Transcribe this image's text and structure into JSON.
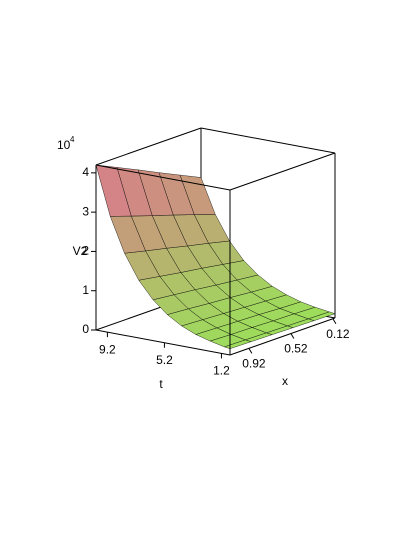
{
  "chart_data": {
    "type": "surface",
    "zlabel": "V2",
    "tlabel": "t",
    "xlabel": "x",
    "z_multiplier": {
      "base": "10",
      "exponent": "4"
    },
    "tlim": [
      0.6,
      10
    ],
    "xlim": [
      0.1,
      1.1
    ],
    "zlim": [
      0,
      4.2
    ],
    "zticks": [
      0,
      1,
      2,
      3,
      4
    ],
    "tticks": [
      9.2,
      5.2,
      1.2
    ],
    "xticks": [
      0.92,
      0.52,
      0.12
    ],
    "colormap": [
      "#9be05a",
      "#e0708f"
    ],
    "mesh_color": "#000000",
    "t": [
      10,
      9,
      8,
      7,
      6,
      5,
      4,
      3,
      2,
      1,
      0.6
    ],
    "x": [
      1.1,
      0.9,
      0.7,
      0.5,
      0.3,
      0.1
    ],
    "values": [
      [
        4.2,
        2.96,
        2.09,
        1.47,
        1.04,
        0.73,
        0.51,
        0.36,
        0.26,
        0.18,
        0.16
      ],
      [
        3.95,
        2.78,
        1.96,
        1.38,
        0.98,
        0.69,
        0.48,
        0.34,
        0.24,
        0.17,
        0.15
      ],
      [
        3.7,
        2.6,
        1.84,
        1.29,
        0.92,
        0.64,
        0.45,
        0.32,
        0.23,
        0.16,
        0.14
      ],
      [
        3.44,
        2.43,
        1.71,
        1.21,
        0.85,
        0.6,
        0.42,
        0.3,
        0.21,
        0.15,
        0.13
      ],
      [
        3.19,
        2.25,
        1.59,
        1.12,
        0.79,
        0.55,
        0.39,
        0.27,
        0.2,
        0.14,
        0.12
      ],
      [
        2.94,
        2.07,
        1.46,
        1.03,
        0.73,
        0.51,
        0.36,
        0.25,
        0.18,
        0.13,
        0.11
      ]
    ]
  }
}
